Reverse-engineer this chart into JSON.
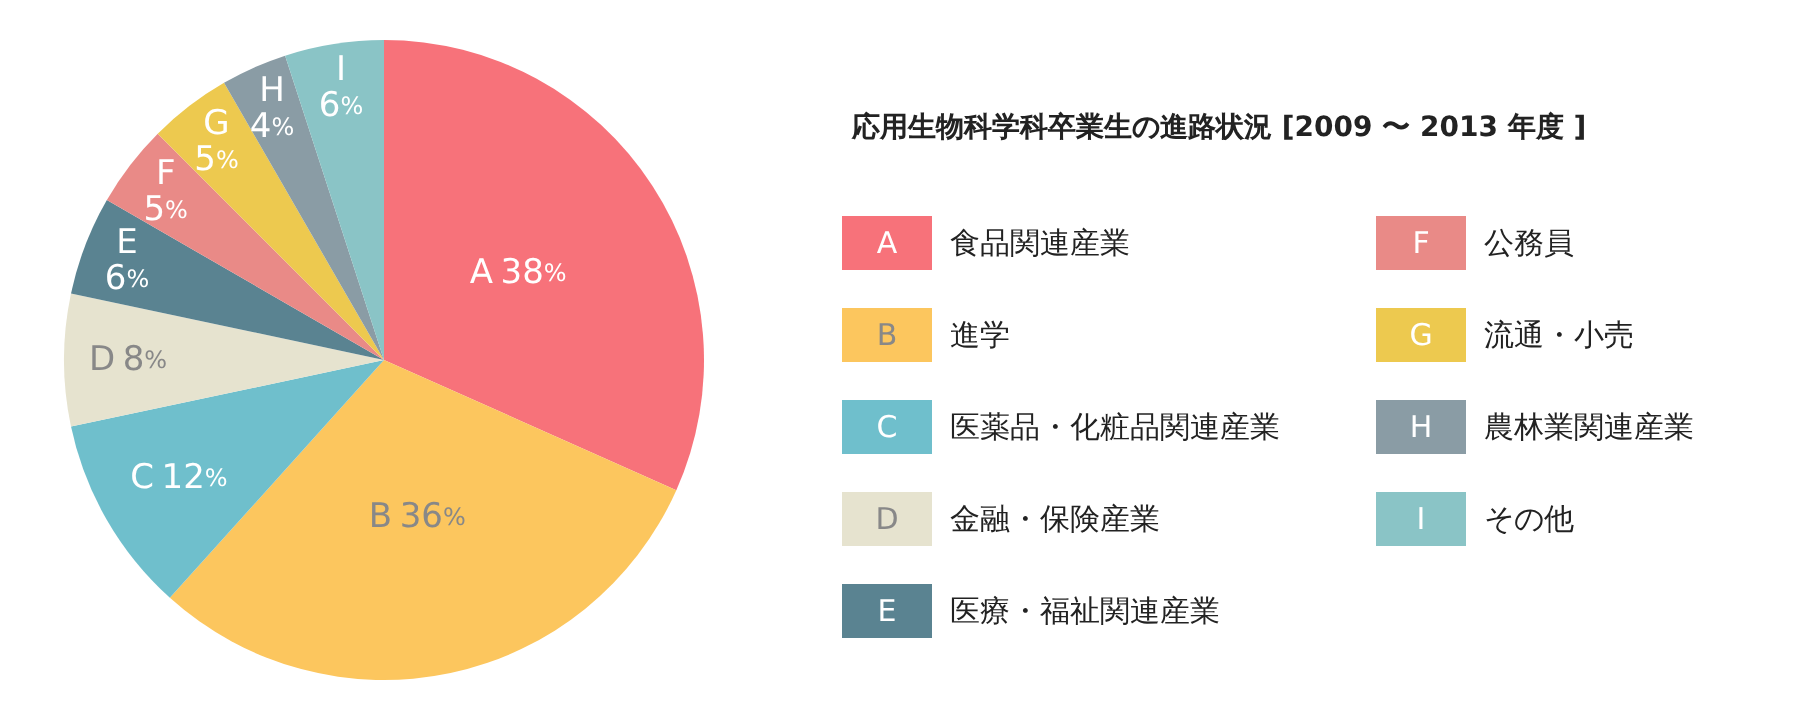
{
  "chart_data": {
    "type": "pie",
    "title": "応用生物科学科卒業生の進路状況 [2009 〜 2013 年度 ]",
    "categories": [
      "食品関連産業",
      "進学",
      "医薬品・化粧品関連産業",
      "金融・保険産業",
      "医療・福祉関連産業",
      "公務員",
      "流通・小売",
      "農林業関連産業",
      "その他"
    ],
    "annotations": [
      "A",
      "B",
      "C",
      "D",
      "E",
      "F",
      "G",
      "H",
      "I"
    ],
    "values": [
      38,
      36,
      12,
      8,
      6,
      5,
      5,
      4,
      6
    ],
    "colors": [
      "#f7727a",
      "#fcc65e",
      "#6fbfcc",
      "#e6e3cf",
      "#5a8391",
      "#e98a87",
      "#edc94f",
      "#8a9ca5",
      "#8ac4c6"
    ],
    "value_labels": [
      "A 38%",
      "B 36%",
      "C 12%",
      "D 8%",
      "E 6%",
      "F 5%",
      "G 5%",
      "H 4%",
      "I 6%"
    ],
    "legend": "right"
  }
}
